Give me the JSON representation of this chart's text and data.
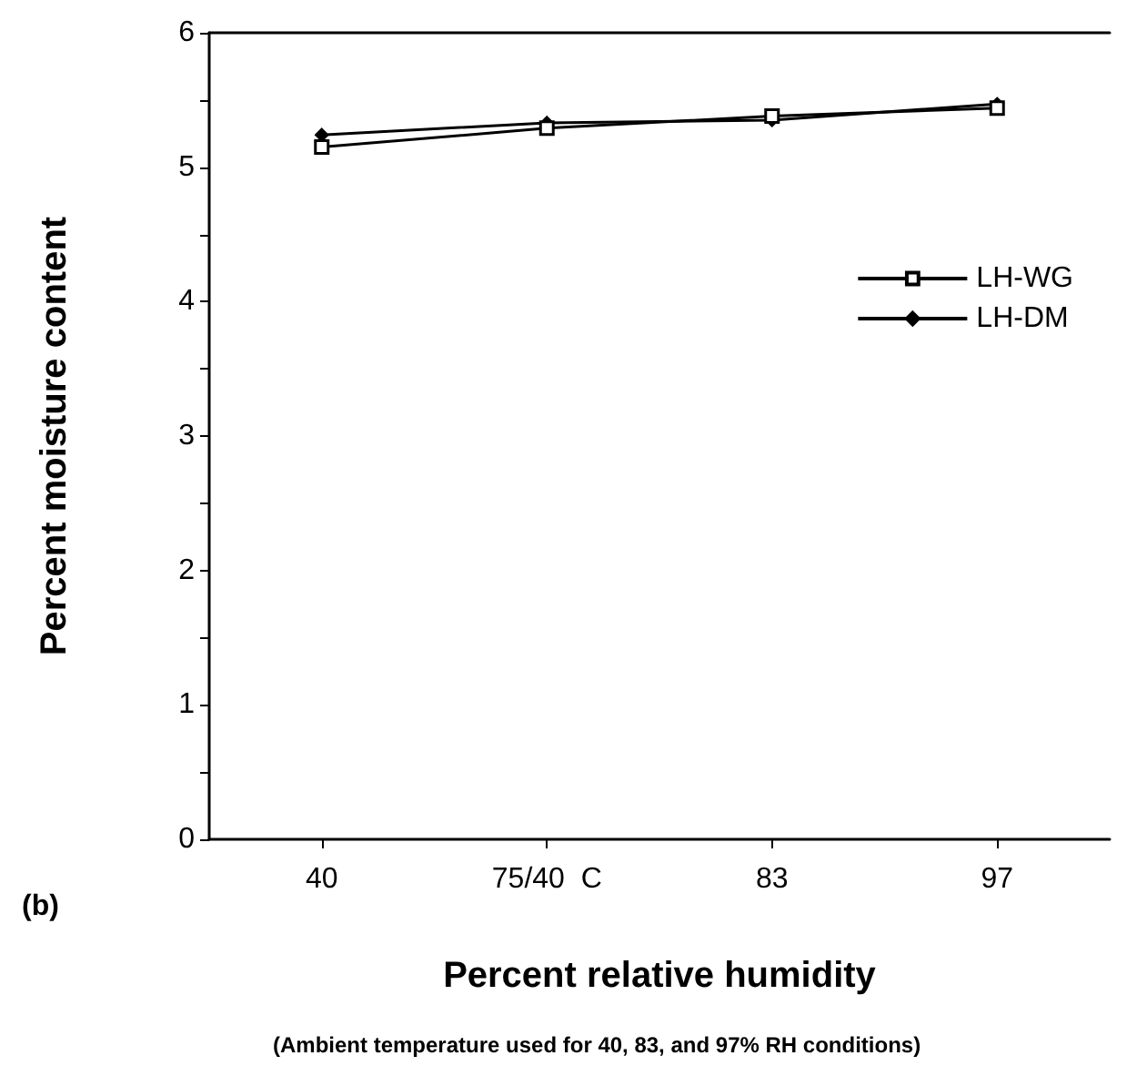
{
  "chart_data": {
    "type": "line",
    "xlabel": "Percent relative humidity",
    "ylabel": "Percent moisture content",
    "annotations": [
      "(b)",
      "(Ambient temperature used for 40, 83, and 97% RH conditions)"
    ],
    "categories": [
      "40",
      "75/40  C",
      "83",
      "97"
    ],
    "series": [
      {
        "name": "LH-WG",
        "color": "#000000",
        "values": [
          5.15,
          5.29,
          5.38,
          5.44
        ],
        "marker": "square"
      },
      {
        "name": "LH-DM",
        "color": "#000000",
        "values": [
          5.24,
          5.33,
          5.35,
          5.47
        ],
        "marker": "diamond"
      }
    ],
    "ylim": [
      0,
      6
    ],
    "yticks": [
      0,
      {
        "value": 0.5,
        "label": null
      },
      1,
      {
        "value": 1.5,
        "label": null
      },
      2,
      {
        "value": 2.5,
        "label": null
      },
      3,
      {
        "value": 3.5,
        "label": null
      },
      4,
      {
        "value": 4.5,
        "label": null
      },
      5,
      {
        "value": 5.5,
        "label": null
      },
      6
    ],
    "grid": false,
    "legend": "right",
    "line_style": "solid"
  }
}
